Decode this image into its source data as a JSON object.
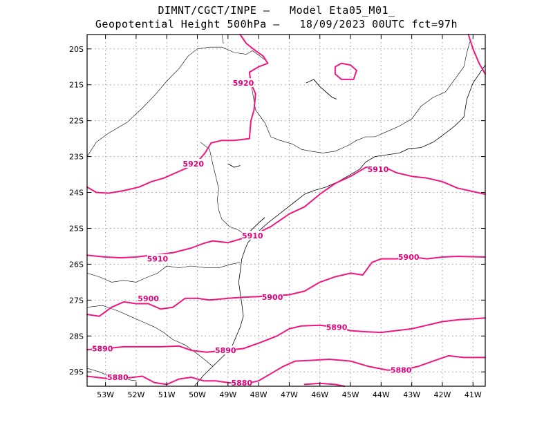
{
  "header": {
    "line1": "DIMNT/CGCT/INPE –   Model Eta05_M01_",
    "line2": "Geopotential Height 500hPa –   18/09/2023 00UTC fct=97h"
  },
  "colors": {
    "contour": "#f0157f",
    "coastline": "#000000",
    "grid": "#9a9a9a",
    "frame": "#000000",
    "background": "#ffffff"
  },
  "map": {
    "lon_range": [
      -53.6,
      -40.6
    ],
    "lat_range": [
      -29.4,
      -19.6
    ],
    "grid_lines": "dotted",
    "lat_ticks": [
      {
        "value": -20,
        "label": "20S"
      },
      {
        "value": -21,
        "label": "21S"
      },
      {
        "value": -22,
        "label": "22S"
      },
      {
        "value": -23,
        "label": "23S"
      },
      {
        "value": -24,
        "label": "24S"
      },
      {
        "value": -25,
        "label": "25S"
      },
      {
        "value": -26,
        "label": "26S"
      },
      {
        "value": -27,
        "label": "27S"
      },
      {
        "value": -28,
        "label": "28S"
      },
      {
        "value": -29,
        "label": "29S"
      }
    ],
    "lon_ticks": [
      {
        "value": -53,
        "label": "53W"
      },
      {
        "value": -52,
        "label": "52W"
      },
      {
        "value": -51,
        "label": "51W"
      },
      {
        "value": -50,
        "label": "50W"
      },
      {
        "value": -49,
        "label": "49W"
      },
      {
        "value": -48,
        "label": "48W"
      },
      {
        "value": -47,
        "label": "47W"
      },
      {
        "value": -46,
        "label": "46W"
      },
      {
        "value": -45,
        "label": "45W"
      },
      {
        "value": -44,
        "label": "44W"
      },
      {
        "value": -43,
        "label": "43W"
      },
      {
        "value": -42,
        "label": "42W"
      },
      {
        "value": -41,
        "label": "41W"
      }
    ]
  },
  "contours": [
    {
      "value": 5920,
      "labels": [
        {
          "text": "5920",
          "lon": -48.5,
          "lat": -20.95
        },
        {
          "text": "5920",
          "lon": -50.13,
          "lat": -23.2
        }
      ],
      "points": [
        [
          -53.6,
          -23.85
        ],
        [
          -53.3,
          -24.0
        ],
        [
          -52.9,
          -24.02
        ],
        [
          -52.4,
          -23.95
        ],
        [
          -51.9,
          -23.85
        ],
        [
          -51.5,
          -23.7
        ],
        [
          -51.1,
          -23.6
        ],
        [
          -50.7,
          -23.45
        ],
        [
          -50.3,
          -23.3
        ],
        [
          -50.0,
          -23.15
        ],
        [
          -49.75,
          -22.9
        ],
        [
          -49.55,
          -22.62
        ],
        [
          -49.2,
          -22.55
        ],
        [
          -48.8,
          -22.55
        ],
        [
          -48.3,
          -22.5
        ],
        [
          -48.25,
          -22.0
        ],
        [
          -48.15,
          -21.7
        ],
        [
          -48.1,
          -21.25
        ],
        [
          -48.25,
          -20.95
        ],
        [
          -48.3,
          -20.65
        ],
        [
          -48.0,
          -20.5
        ],
        [
          -47.7,
          -20.4
        ],
        [
          -47.85,
          -20.2
        ],
        [
          -48.1,
          -20.05
        ],
        [
          -48.4,
          -19.85
        ],
        [
          -48.6,
          -19.6
        ]
      ]
    },
    {
      "value": 5920,
      "labels": [],
      "points": [
        [
          -45.5,
          -20.5
        ],
        [
          -45.3,
          -20.4
        ],
        [
          -45.0,
          -20.45
        ],
        [
          -44.8,
          -20.6
        ],
        [
          -44.9,
          -20.85
        ],
        [
          -45.3,
          -20.85
        ],
        [
          -45.5,
          -20.7
        ],
        [
          -45.5,
          -20.5
        ]
      ]
    },
    {
      "value": 5920,
      "labels": [],
      "points": [
        [
          -41.15,
          -19.6
        ],
        [
          -41.0,
          -20.0
        ],
        [
          -40.8,
          -20.4
        ],
        [
          -40.6,
          -20.7
        ]
      ]
    },
    {
      "value": 5910,
      "labels": [
        {
          "text": "5910",
          "lon": -44.1,
          "lat": -23.35
        },
        {
          "text": "5910",
          "lon": -48.2,
          "lat": -25.2
        },
        {
          "text": "5910",
          "lon": -51.3,
          "lat": -25.85
        }
      ],
      "points": [
        [
          -53.6,
          -25.75
        ],
        [
          -53.0,
          -25.8
        ],
        [
          -52.5,
          -25.82
        ],
        [
          -52.0,
          -25.8
        ],
        [
          -51.5,
          -25.75
        ],
        [
          -50.8,
          -25.68
        ],
        [
          -50.2,
          -25.55
        ],
        [
          -49.8,
          -25.42
        ],
        [
          -49.5,
          -25.35
        ],
        [
          -49.0,
          -25.4
        ],
        [
          -48.6,
          -25.3
        ],
        [
          -48.2,
          -25.2
        ],
        [
          -47.6,
          -24.95
        ],
        [
          -47.0,
          -24.6
        ],
        [
          -46.5,
          -24.4
        ],
        [
          -46.0,
          -24.05
        ],
        [
          -45.5,
          -23.75
        ],
        [
          -45.0,
          -23.55
        ],
        [
          -44.5,
          -23.3
        ],
        [
          -44.0,
          -23.25
        ],
        [
          -43.5,
          -23.45
        ],
        [
          -43.0,
          -23.55
        ],
        [
          -42.5,
          -23.6
        ],
        [
          -42.0,
          -23.7
        ],
        [
          -41.5,
          -23.88
        ],
        [
          -40.6,
          -24.05
        ]
      ]
    },
    {
      "value": 5900,
      "labels": [
        {
          "text": "5900",
          "lon": -43.1,
          "lat": -25.8
        },
        {
          "text": "5900",
          "lon": -47.55,
          "lat": -26.92
        },
        {
          "text": "5900",
          "lon": -51.6,
          "lat": -26.95
        }
      ],
      "points": [
        [
          -53.6,
          -27.4
        ],
        [
          -53.2,
          -27.45
        ],
        [
          -52.8,
          -27.2
        ],
        [
          -52.4,
          -27.05
        ],
        [
          -52.0,
          -27.1
        ],
        [
          -51.6,
          -27.1
        ],
        [
          -51.2,
          -27.25
        ],
        [
          -50.8,
          -27.2
        ],
        [
          -50.4,
          -26.95
        ],
        [
          -50.0,
          -26.95
        ],
        [
          -49.6,
          -27.0
        ],
        [
          -49.0,
          -26.95
        ],
        [
          -48.5,
          -26.92
        ],
        [
          -48.0,
          -26.9
        ],
        [
          -47.5,
          -26.88
        ],
        [
          -47.0,
          -26.85
        ],
        [
          -46.5,
          -26.75
        ],
        [
          -46.0,
          -26.5
        ],
        [
          -45.5,
          -26.35
        ],
        [
          -45.0,
          -26.25
        ],
        [
          -44.6,
          -26.3
        ],
        [
          -44.3,
          -25.95
        ],
        [
          -44.0,
          -25.85
        ],
        [
          -43.5,
          -25.85
        ],
        [
          -43.0,
          -25.8
        ],
        [
          -42.5,
          -25.85
        ],
        [
          -42.0,
          -25.8
        ],
        [
          -41.5,
          -25.78
        ],
        [
          -40.6,
          -25.8
        ]
      ]
    },
    {
      "value": 5890,
      "labels": [
        {
          "text": "5890",
          "lon": -45.45,
          "lat": -27.75
        },
        {
          "text": "5890",
          "lon": -49.08,
          "lat": -28.4
        },
        {
          "text": "5890",
          "lon": -53.1,
          "lat": -28.35
        }
      ],
      "points": [
        [
          -53.6,
          -28.38
        ],
        [
          -53.0,
          -28.35
        ],
        [
          -52.4,
          -28.3
        ],
        [
          -51.8,
          -28.3
        ],
        [
          -51.2,
          -28.3
        ],
        [
          -50.6,
          -28.28
        ],
        [
          -50.2,
          -28.4
        ],
        [
          -49.7,
          -28.45
        ],
        [
          -49.1,
          -28.4
        ],
        [
          -48.5,
          -28.35
        ],
        [
          -48.0,
          -28.2
        ],
        [
          -47.4,
          -28.0
        ],
        [
          -47.0,
          -27.8
        ],
        [
          -46.6,
          -27.72
        ],
        [
          -46.0,
          -27.7
        ],
        [
          -45.5,
          -27.75
        ],
        [
          -45.0,
          -27.85
        ],
        [
          -44.5,
          -27.88
        ],
        [
          -44.0,
          -27.9
        ],
        [
          -43.5,
          -27.85
        ],
        [
          -43.0,
          -27.8
        ],
        [
          -42.5,
          -27.7
        ],
        [
          -42.0,
          -27.6
        ],
        [
          -41.5,
          -27.55
        ],
        [
          -40.6,
          -27.5
        ]
      ]
    },
    {
      "value": 5880,
      "labels": [
        {
          "text": "5880",
          "lon": -43.35,
          "lat": -28.95
        },
        {
          "text": "5880",
          "lon": -48.55,
          "lat": -29.3
        },
        {
          "text": "5880",
          "lon": -52.6,
          "lat": -29.15
        }
      ],
      "points": [
        [
          -53.6,
          -29.12
        ],
        [
          -53.0,
          -29.18
        ],
        [
          -52.4,
          -29.18
        ],
        [
          -51.8,
          -29.12
        ],
        [
          -51.4,
          -29.3
        ],
        [
          -51.0,
          -29.35
        ],
        [
          -50.6,
          -29.2
        ],
        [
          -50.2,
          -29.15
        ],
        [
          -49.8,
          -29.25
        ],
        [
          -49.4,
          -29.25
        ],
        [
          -49.0,
          -29.3
        ],
        [
          -48.5,
          -29.35
        ],
        [
          -48.0,
          -29.25
        ],
        [
          -47.6,
          -29.05
        ],
        [
          -47.2,
          -28.85
        ],
        [
          -46.8,
          -28.7
        ],
        [
          -46.3,
          -28.68
        ],
        [
          -45.7,
          -28.65
        ],
        [
          -45.0,
          -28.7
        ],
        [
          -44.4,
          -28.85
        ],
        [
          -43.8,
          -28.95
        ],
        [
          -43.3,
          -28.95
        ],
        [
          -42.8,
          -28.85
        ],
        [
          -42.3,
          -28.7
        ],
        [
          -41.8,
          -28.55
        ],
        [
          -41.3,
          -28.6
        ],
        [
          -40.6,
          -28.6
        ]
      ]
    },
    {
      "value": 5880,
      "labels": [],
      "points": [
        [
          -46.5,
          -29.35
        ],
        [
          -46.0,
          -29.32
        ],
        [
          -45.5,
          -29.35
        ],
        [
          -45.2,
          -29.4
        ]
      ]
    }
  ],
  "coastline": [
    [
      -40.6,
      -20.45
    ],
    [
      -41.0,
      -20.95
    ],
    [
      -41.2,
      -21.4
    ],
    [
      -41.3,
      -21.9
    ],
    [
      -41.6,
      -22.15
    ],
    [
      -41.9,
      -22.35
    ],
    [
      -42.3,
      -22.6
    ],
    [
      -42.7,
      -22.75
    ],
    [
      -43.1,
      -22.78
    ],
    [
      -43.4,
      -22.9
    ],
    [
      -43.8,
      -22.95
    ],
    [
      -44.2,
      -23.0
    ],
    [
      -44.5,
      -23.15
    ],
    [
      -44.7,
      -23.35
    ],
    [
      -45.1,
      -23.55
    ],
    [
      -45.4,
      -23.7
    ],
    [
      -45.8,
      -23.85
    ],
    [
      -46.2,
      -23.95
    ],
    [
      -46.5,
      -24.05
    ],
    [
      -46.8,
      -24.25
    ],
    [
      -47.1,
      -24.45
    ],
    [
      -47.4,
      -24.65
    ],
    [
      -47.7,
      -24.85
    ],
    [
      -47.9,
      -25.0
    ],
    [
      -48.15,
      -25.2
    ],
    [
      -48.35,
      -25.4
    ],
    [
      -48.45,
      -25.6
    ],
    [
      -48.55,
      -25.85
    ],
    [
      -48.6,
      -26.2
    ],
    [
      -48.65,
      -26.5
    ],
    [
      -48.6,
      -26.8
    ],
    [
      -48.55,
      -27.1
    ],
    [
      -48.5,
      -27.45
    ],
    [
      -48.6,
      -27.75
    ],
    [
      -48.75,
      -28.05
    ],
    [
      -48.9,
      -28.35
    ],
    [
      -49.2,
      -28.6
    ],
    [
      -49.5,
      -28.85
    ],
    [
      -49.8,
      -29.1
    ],
    [
      -50.0,
      -29.3
    ],
    [
      -50.1,
      -29.4
    ]
  ],
  "borders": [
    [
      [
        -53.6,
        -23.0
      ],
      [
        -53.3,
        -22.6
      ],
      [
        -52.9,
        -22.35
      ],
      [
        -52.3,
        -22.05
      ],
      [
        -51.8,
        -21.65
      ],
      [
        -51.4,
        -21.3
      ],
      [
        -51.0,
        -20.9
      ],
      [
        -50.6,
        -20.55
      ],
      [
        -50.3,
        -20.2
      ],
      [
        -50.0,
        -20.0
      ],
      [
        -49.6,
        -19.95
      ],
      [
        -49.2,
        -19.95
      ],
      [
        -48.8,
        -20.1
      ],
      [
        -48.4,
        -20.15
      ],
      [
        -48.2,
        -20.05
      ],
      [
        -47.8,
        -20.3
      ]
    ],
    [
      [
        -49.2,
        -19.6
      ],
      [
        -49.15,
        -19.85
      ]
    ],
    [
      [
        -48.3,
        -20.65
      ],
      [
        -48.2,
        -21.2
      ],
      [
        -48.1,
        -21.7
      ],
      [
        -47.8,
        -22.05
      ],
      [
        -47.6,
        -22.45
      ]
    ],
    [
      [
        -47.6,
        -22.45
      ],
      [
        -47.3,
        -22.55
      ],
      [
        -46.9,
        -22.65
      ],
      [
        -46.6,
        -22.8
      ],
      [
        -46.3,
        -22.85
      ],
      [
        -45.9,
        -22.9
      ],
      [
        -45.5,
        -22.85
      ],
      [
        -45.1,
        -22.7
      ],
      [
        -44.8,
        -22.55
      ],
      [
        -44.5,
        -22.45
      ],
      [
        -44.2,
        -22.45
      ],
      [
        -43.8,
        -22.3
      ],
      [
        -43.4,
        -22.15
      ],
      [
        -43.0,
        -21.95
      ],
      [
        -42.7,
        -21.6
      ],
      [
        -42.3,
        -21.35
      ],
      [
        -41.9,
        -21.2
      ],
      [
        -41.6,
        -20.85
      ],
      [
        -41.3,
        -20.5
      ],
      [
        -41.2,
        -20.1
      ],
      [
        -41.1,
        -19.8
      ]
    ],
    [
      [
        -49.9,
        -22.6
      ],
      [
        -49.6,
        -22.8
      ],
      [
        -49.5,
        -23.2
      ],
      [
        -49.4,
        -23.55
      ],
      [
        -49.3,
        -23.9
      ],
      [
        -49.35,
        -24.2
      ],
      [
        -49.3,
        -24.5
      ],
      [
        -49.2,
        -24.75
      ],
      [
        -48.95,
        -24.95
      ],
      [
        -48.65,
        -25.05
      ],
      [
        -48.4,
        -25.2
      ]
    ],
    [
      [
        -53.6,
        -26.25
      ],
      [
        -53.2,
        -26.35
      ],
      [
        -52.8,
        -26.5
      ],
      [
        -52.4,
        -26.45
      ],
      [
        -52.0,
        -26.5
      ],
      [
        -51.6,
        -26.35
      ],
      [
        -51.3,
        -26.25
      ],
      [
        -51.0,
        -26.05
      ],
      [
        -50.6,
        -26.1
      ],
      [
        -50.2,
        -26.05
      ],
      [
        -49.7,
        -26.1
      ],
      [
        -49.3,
        -26.1
      ],
      [
        -48.9,
        -26.0
      ],
      [
        -48.6,
        -25.95
      ]
    ],
    [
      [
        -53.6,
        -27.2
      ],
      [
        -53.1,
        -27.15
      ],
      [
        -52.6,
        -27.3
      ],
      [
        -52.2,
        -27.45
      ],
      [
        -51.8,
        -27.6
      ],
      [
        -51.4,
        -27.75
      ],
      [
        -51.1,
        -27.9
      ],
      [
        -50.8,
        -28.1
      ],
      [
        -50.4,
        -28.25
      ],
      [
        -50.0,
        -28.5
      ],
      [
        -49.7,
        -28.7
      ],
      [
        -49.5,
        -28.85
      ]
    ],
    [
      [
        -53.6,
        -28.9
      ],
      [
        -53.2,
        -29.0
      ],
      [
        -52.8,
        -29.15
      ],
      [
        -52.4,
        -29.2
      ],
      [
        -52.0,
        -29.25
      ]
    ]
  ],
  "islands": [
    [
      [
        -46.45,
        -20.95
      ],
      [
        -46.2,
        -20.85
      ],
      [
        -46.0,
        -21.05
      ],
      [
        -45.8,
        -21.2
      ],
      [
        -45.6,
        -21.35
      ],
      [
        -45.45,
        -21.4
      ]
    ],
    [
      [
        -49.0,
        -23.2
      ],
      [
        -48.8,
        -23.3
      ],
      [
        -48.6,
        -23.25
      ]
    ],
    [
      [
        -48.3,
        -25.1
      ],
      [
        -48.0,
        -24.85
      ],
      [
        -47.8,
        -24.7
      ]
    ]
  ]
}
